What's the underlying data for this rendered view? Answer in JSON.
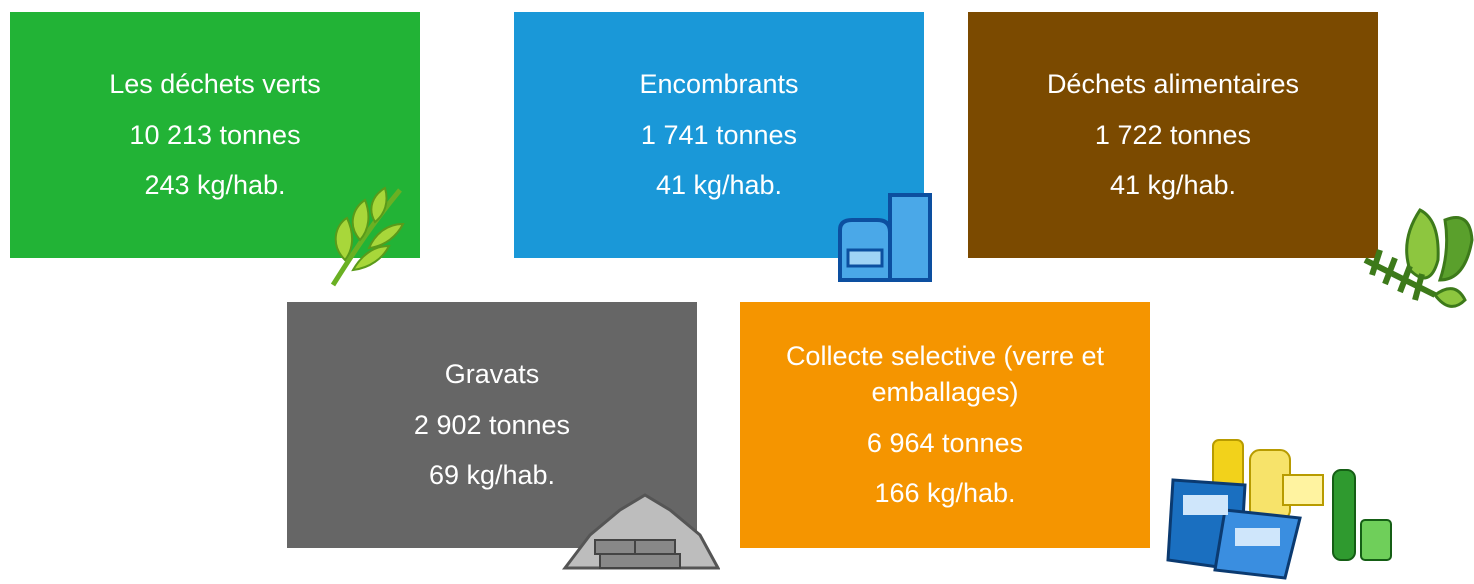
{
  "cards": [
    {
      "title": "Les déchets verts",
      "tonnage": "10 213 tonnes",
      "per_capita": "243 kg/hab."
    },
    {
      "title": "Encombrants",
      "tonnage": "1 741 tonnes",
      "per_capita": "41 kg/hab."
    },
    {
      "title": "Déchets alimentaires",
      "tonnage": "1 722 tonnes",
      "per_capita": "41 kg/hab."
    },
    {
      "title": "Gravats",
      "tonnage": "2 902 tonnes",
      "per_capita": "69 kg/hab."
    },
    {
      "title": "Collecte selective (verre et emballages)",
      "tonnage": "6 964 tonnes",
      "per_capita": "166 kg/hab."
    }
  ]
}
